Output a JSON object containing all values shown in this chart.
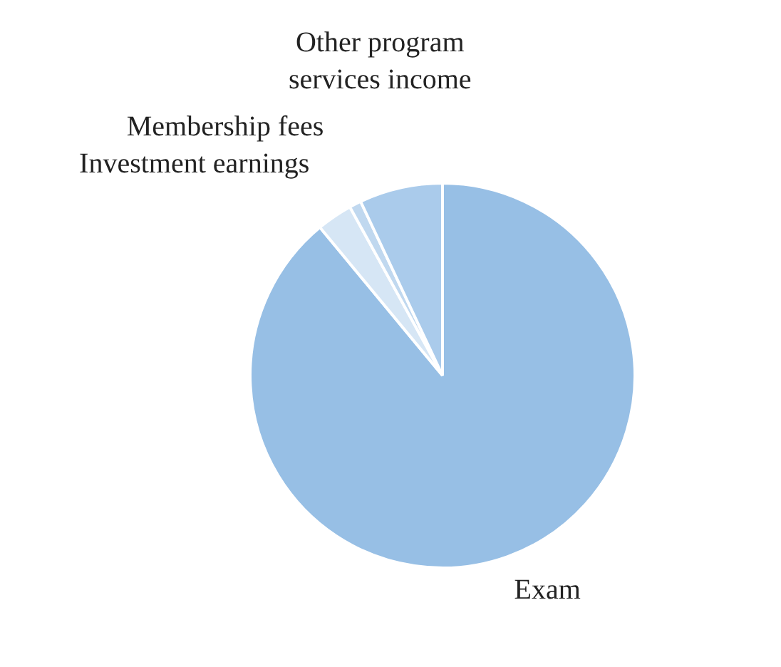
{
  "chart_data": {
    "type": "pie",
    "categories": [
      "Exam",
      "Investment earnings",
      "Membership fees",
      "Other program\nservices income"
    ],
    "values": [
      89,
      3,
      1,
      7
    ],
    "colors": [
      "#97bfe5",
      "#d6e6f5",
      "#c0d8ef",
      "#aacbeb"
    ]
  }
}
